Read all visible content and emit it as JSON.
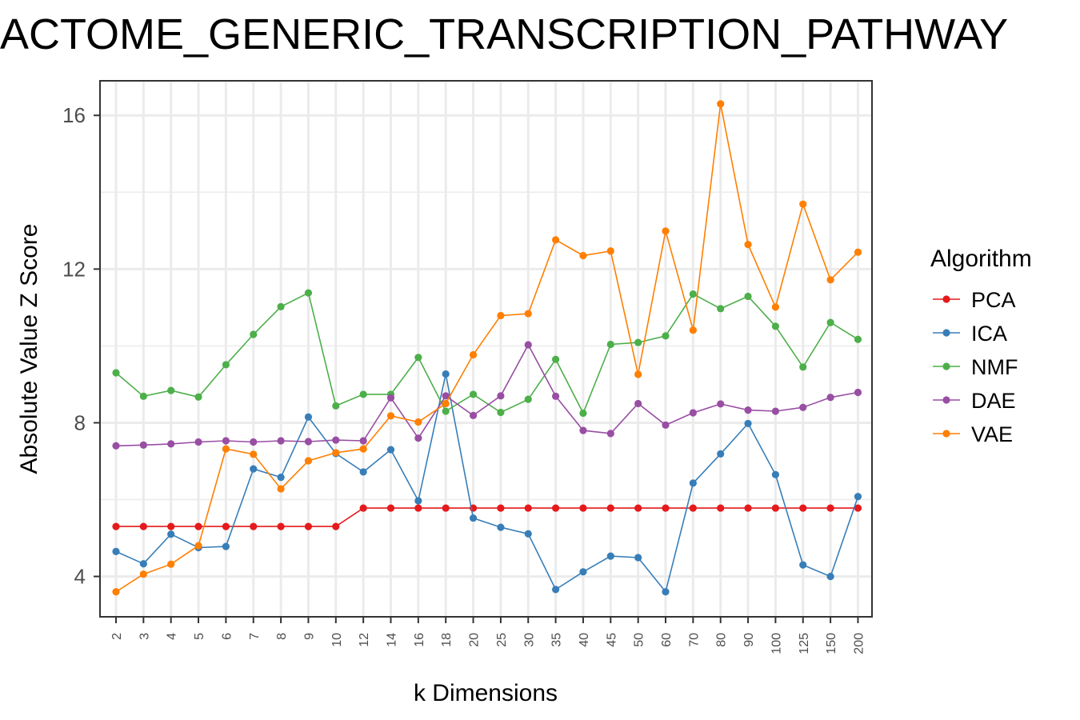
{
  "chart_data": {
    "type": "line",
    "title": "ACTOME_GENERIC_TRANSCRIPTION_PATHWAY",
    "xlabel": "k Dimensions",
    "ylabel": "Absolute Value Z Score",
    "categories": [
      "2",
      "3",
      "4",
      "5",
      "6",
      "7",
      "8",
      "9",
      "10",
      "12",
      "14",
      "16",
      "18",
      "20",
      "25",
      "30",
      "35",
      "40",
      "45",
      "50",
      "60",
      "70",
      "80",
      "90",
      "100",
      "125",
      "150",
      "200"
    ],
    "yticks": [
      "4",
      "8",
      "12",
      "16"
    ],
    "ylim": [
      2.95,
      16.9
    ],
    "grid": true,
    "legend": {
      "title": "Algorithm",
      "placement": "right"
    },
    "series": [
      {
        "name": "PCA",
        "color": "#e41a1c",
        "values": [
          5.3,
          5.3,
          5.3,
          5.3,
          5.3,
          5.3,
          5.3,
          5.3,
          5.3,
          5.78,
          5.78,
          5.78,
          5.78,
          5.78,
          5.78,
          5.78,
          5.78,
          5.78,
          5.78,
          5.78,
          5.78,
          5.78,
          5.78,
          5.78,
          5.78,
          5.78,
          5.78,
          5.78
        ]
      },
      {
        "name": "ICA",
        "color": "#377eb8",
        "values": [
          4.65,
          4.33,
          5.1,
          4.75,
          4.78,
          6.8,
          6.58,
          8.15,
          7.2,
          6.72,
          7.3,
          5.97,
          9.27,
          5.52,
          5.28,
          5.11,
          3.66,
          4.12,
          4.53,
          4.49,
          3.6,
          6.43,
          7.19,
          7.98,
          6.65,
          4.3,
          4.0,
          6.08
        ]
      },
      {
        "name": "NMF",
        "color": "#4daf4a",
        "values": [
          9.3,
          8.69,
          8.84,
          8.67,
          9.51,
          10.3,
          11.02,
          11.38,
          8.44,
          8.74,
          8.74,
          9.7,
          8.3,
          8.74,
          8.27,
          8.61,
          9.65,
          8.25,
          10.04,
          10.09,
          10.26,
          11.35,
          10.97,
          11.29,
          10.51,
          9.45,
          10.61,
          10.17
        ]
      },
      {
        "name": "DAE",
        "color": "#984ea3",
        "values": [
          7.4,
          7.42,
          7.45,
          7.5,
          7.53,
          7.5,
          7.53,
          7.51,
          7.55,
          7.53,
          8.65,
          7.6,
          8.7,
          8.19,
          8.7,
          10.03,
          8.69,
          7.8,
          7.72,
          8.5,
          7.94,
          8.26,
          8.49,
          8.33,
          8.3,
          8.4,
          8.66,
          8.79
        ]
      },
      {
        "name": "VAE",
        "color": "#ff7f00",
        "values": [
          3.6,
          4.06,
          4.32,
          4.8,
          7.32,
          7.18,
          6.28,
          7.01,
          7.22,
          7.32,
          8.18,
          8.02,
          8.5,
          9.77,
          10.79,
          10.84,
          12.76,
          12.35,
          12.47,
          9.26,
          12.99,
          10.41,
          16.3,
          12.64,
          11.01,
          13.69,
          11.72,
          12.44
        ]
      }
    ]
  }
}
